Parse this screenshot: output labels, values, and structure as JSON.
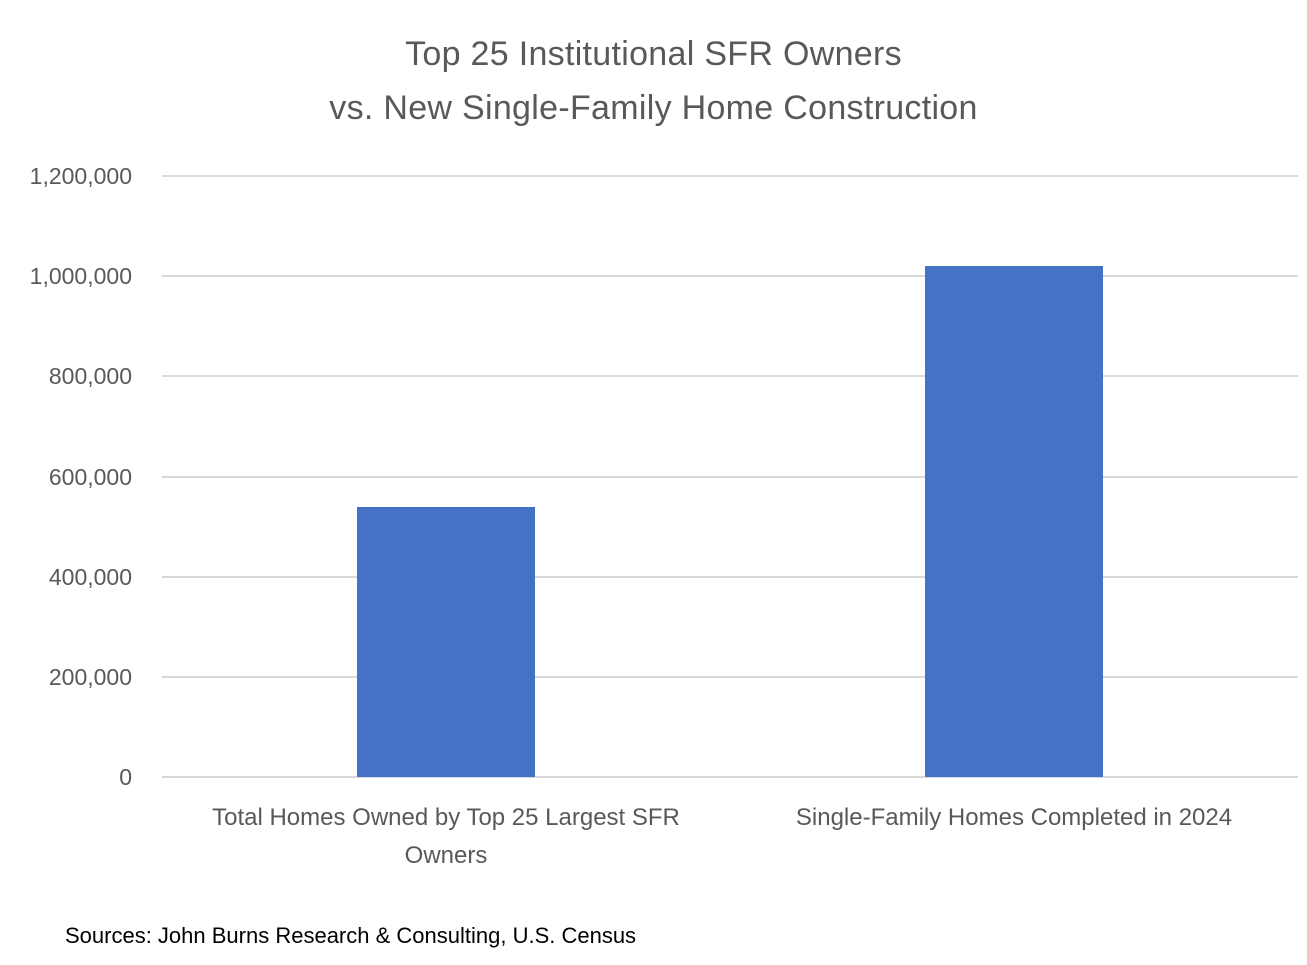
{
  "chart": {
    "title_lines": [
      "Top 25 Institutional SFR Owners",
      "vs. New Single-Family Home Construction"
    ],
    "source": "Sources: John Burns Research & Consulting, U.S. Census"
  },
  "chart_data": {
    "type": "bar",
    "title": "Top 25 Institutional SFR Owners vs. New Single-Family Home Construction",
    "categories": [
      "Total Homes Owned by Top 25 Largest SFR Owners",
      "Single-Family Homes Completed in 2024"
    ],
    "category_label_lines": [
      [
        "Total Homes Owned by Top 25 Largest SFR",
        "Owners"
      ],
      [
        "Single-Family Homes Completed in 2024"
      ]
    ],
    "values": [
      540000,
      1020000
    ],
    "xlabel": "",
    "ylabel": "",
    "ylim": [
      0,
      1200000
    ],
    "ytick_interval": 200000,
    "ytick_labels": [
      "0",
      "200,000",
      "400,000",
      "600,000",
      "800,000",
      "1,000,000",
      "1,200,000"
    ],
    "grid": true,
    "legend": false,
    "bar_color": "#4472C4",
    "gridline_color": "#D9D9D9",
    "text_color": "#595959",
    "source_color": "#000000"
  }
}
